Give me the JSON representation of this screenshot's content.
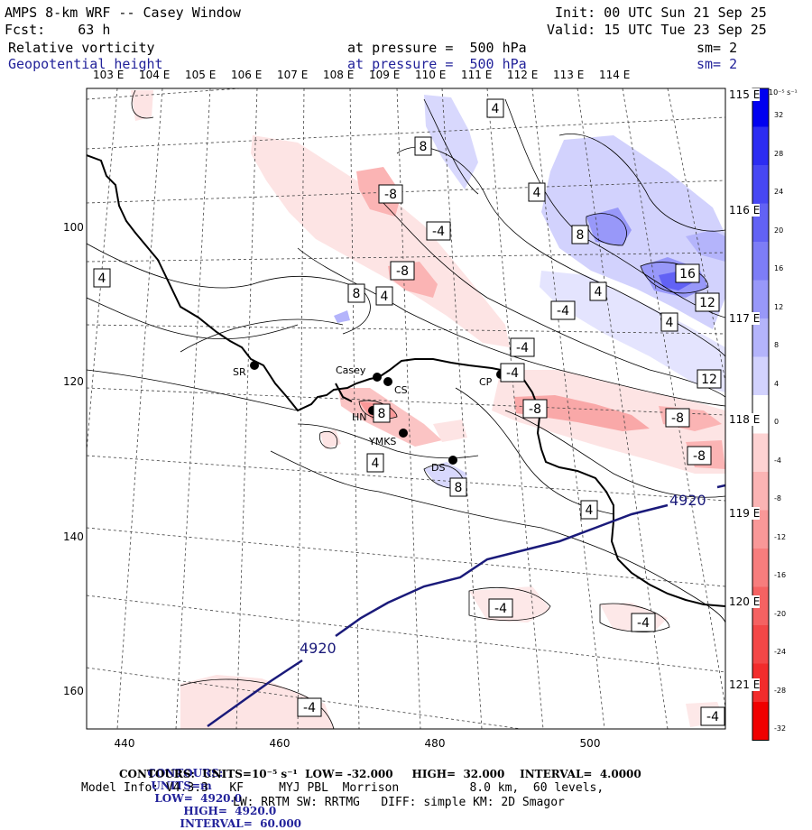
{
  "header": {
    "title": "AMPS 8-km WRF -- Casey Window",
    "init": "Init: 00 UTC Sun 21 Sep 25",
    "fcst": "Fcst:    63 h",
    "valid": "Valid: 15 UTC Tue 23 Sep 25",
    "field1": "Relative vorticity",
    "field1_level": "at pressure =  500 hPa",
    "field1_sm": "sm= 2",
    "field2": "Geopotential height",
    "field2_level": "at pressure =  500 hPa",
    "field2_sm": "sm= 2"
  },
  "longitude_labels": [
    "103 E",
    "104 E",
    "105 E",
    "106 E",
    "107 E",
    "108 E",
    "109 E",
    "110 E",
    "111 E",
    "112 E",
    "113 E",
    "114 E"
  ],
  "latitude_labels": [
    "115 E",
    "116 E",
    "117 E",
    "118 E",
    "119 E",
    "120 E",
    "121 E"
  ],
  "x_ticks": [
    "440",
    "460",
    "480",
    "500"
  ],
  "y_ticks": [
    "100",
    "120",
    "140",
    "160"
  ],
  "colorbar": {
    "unit": "10⁻⁵ s⁻¹",
    "labels": [
      "32",
      "28",
      "24",
      "20",
      "16",
      "12",
      "8",
      "4",
      "0",
      "-4",
      "-8",
      "-12",
      "-16",
      "-20",
      "-24",
      "-28",
      "-32"
    ],
    "colors": [
      "#0000f0",
      "#2c2cf2",
      "#4747f3",
      "#6262f5",
      "#7d7df7",
      "#9898f9",
      "#b4b4fb",
      "#d2d2fd",
      "#ffffff",
      "#fdd2d2",
      "#fbb4b4",
      "#f99898",
      "#f77d7d",
      "#f56262",
      "#f34747",
      "#f22c2c",
      "#f00000"
    ]
  },
  "stations": [
    {
      "name": "SR"
    },
    {
      "name": "Casey"
    },
    {
      "name": "CS"
    },
    {
      "name": "HN"
    },
    {
      "name": "YMKS"
    },
    {
      "name": "DS"
    },
    {
      "name": "CP"
    }
  ],
  "contour_labels": [
    "4",
    "8",
    "-8",
    "-4",
    "4",
    "-8",
    "8",
    "4",
    "16",
    "12",
    "4",
    "8",
    "4",
    "-4",
    "12",
    "-4",
    "-8",
    "8",
    "-8",
    "-8",
    "-4",
    "4",
    "8",
    "4",
    "-4",
    "-4",
    "-4",
    "-4",
    "4"
  ],
  "height_labels": [
    "4920",
    "4920"
  ],
  "footer": {
    "line1_contours": "CONTOURS:",
    "line1_units": "UNITS=m",
    "line1_low": "LOW=  4920.0",
    "line1_high": "HIGH=  4920.0",
    "line1_interval": "INTERVAL=  60.000",
    "line2": "CONTOURS:  UNITS=10⁻⁵ s⁻¹  LOW= -32.000     HIGH=  32.000    INTERVAL=  4.0000",
    "line3": "Model Info: V4.3.3   KF     MYJ PBL  Morrison          8.0 km,  60 levels,",
    "line4": "LW: RRTM SW: RRTMG   DIFF: simple KM: 2D Smagor"
  }
}
